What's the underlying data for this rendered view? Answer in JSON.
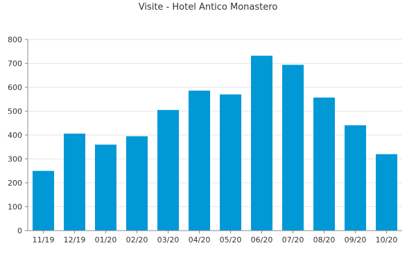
{
  "chart_data": {
    "type": "bar",
    "title": "Visite - Hotel Antico Monastero",
    "categories": [
      "11/19",
      "12/19",
      "01/20",
      "02/20",
      "03/20",
      "04/20",
      "05/20",
      "06/20",
      "07/20",
      "08/20",
      "09/20",
      "10/20"
    ],
    "values": [
      250,
      406,
      360,
      395,
      505,
      586,
      570,
      732,
      694,
      557,
      441,
      320
    ],
    "ylim": [
      0,
      800
    ],
    "yticks": [
      0,
      100,
      200,
      300,
      400,
      500,
      600,
      700,
      800
    ],
    "grid": true,
    "bar_color": "#0099d6",
    "grid_color": "#e6e6e6",
    "axis_color": "#888888"
  }
}
